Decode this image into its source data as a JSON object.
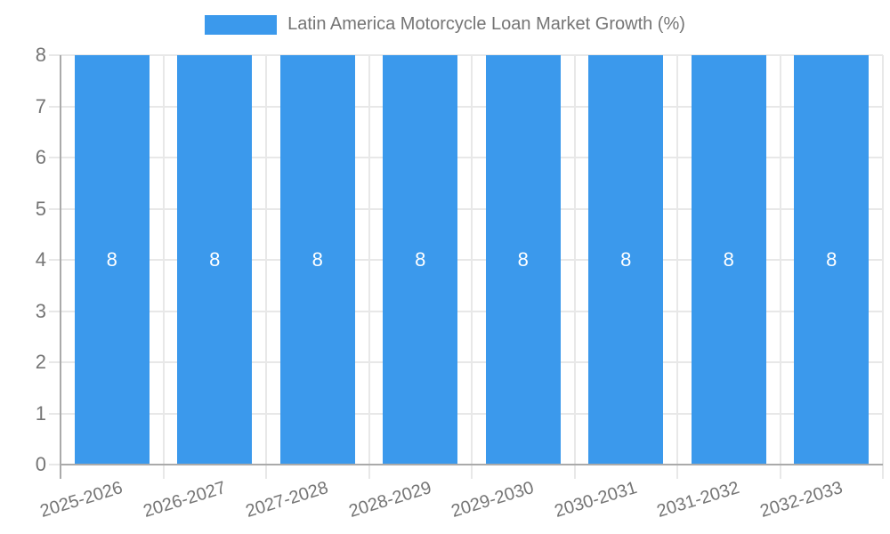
{
  "chart_data": {
    "type": "bar",
    "title": "Latin America Motorcycle Loan Market Growth (%)",
    "categories": [
      "2025-2026",
      "2026-2027",
      "2027-2028",
      "2028-2029",
      "2029-2030",
      "2030-2031",
      "2031-2032",
      "2032-2033"
    ],
    "series": [
      {
        "name": "Latin America Motorcycle Loan Market Growth (%)",
        "values": [
          8,
          8,
          8,
          8,
          8,
          8,
          8,
          8
        ],
        "bar_labels": [
          "8",
          "8",
          "8",
          "8",
          "8",
          "8",
          "8",
          "8"
        ]
      }
    ],
    "xlabel": "",
    "ylabel": "",
    "ylim": [
      0,
      8
    ],
    "yticks": [
      0,
      1,
      2,
      3,
      4,
      5,
      6,
      7,
      8
    ],
    "grid": true,
    "legend_position": "top",
    "colors": {
      "bar": "#3b99ec",
      "bar_label_text": "#ffffff",
      "axis_text": "#757575",
      "grid_line": "#e8e8e8",
      "axis_line": "#aaaaaa",
      "background": "#ffffff"
    }
  }
}
